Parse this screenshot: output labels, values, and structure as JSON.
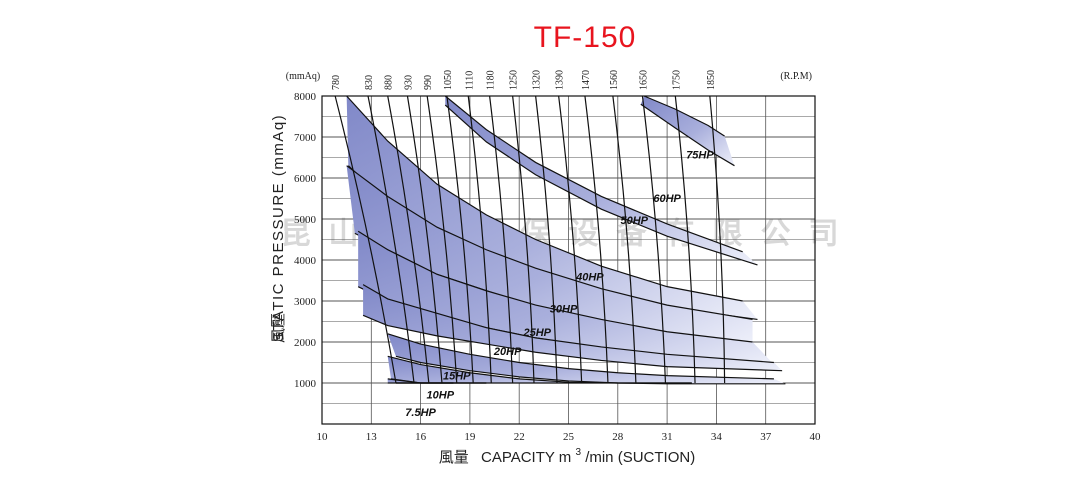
{
  "chart_data": {
    "type": "line",
    "title": "TF-150",
    "xlabel": "風量 CAPACITY m3/min (SUCTION)",
    "xlabel_parts": {
      "cjk": "風量",
      "main": "CAPACITY  m",
      "sup": "3",
      "tail": "/min (SUCTION)"
    },
    "ylabel": "STATIC PRESSURE (mmAq)",
    "ylabel_cjk": "風壓",
    "xlim": [
      10,
      40
    ],
    "ylim": [
      0,
      8000
    ],
    "x_ticks": [
      "10",
      "13",
      "16",
      "19",
      "22",
      "25",
      "28",
      "31",
      "34",
      "37",
      "40"
    ],
    "y_ticks": [
      "1000",
      "2000",
      "3000",
      "4000",
      "5000",
      "6000",
      "7000",
      "8000"
    ],
    "top_axis": {
      "left_unit": "(mmAq)",
      "right_unit": "(R.P.M)",
      "rpm_labels": [
        "780",
        "830",
        "880",
        "930",
        "990",
        "1050",
        "1110",
        "1180",
        "1250",
        "1320",
        "1390",
        "1470",
        "1560",
        "1650",
        "1750",
        "1850"
      ]
    },
    "watermark": "昆山大圆环保设备有限公司",
    "grid": true,
    "colors": {
      "band": "#8088c8",
      "band_light": "#eef0fa",
      "title": "#e8141e",
      "line": "#111111"
    },
    "rpm_curves": [
      {
        "rpm": "780",
        "points": [
          [
            10.8,
            8000
          ],
          [
            14.5,
            1000
          ]
        ]
      },
      {
        "rpm": "830",
        "points": [
          [
            12.8,
            8000
          ],
          [
            15.6,
            1000
          ]
        ]
      },
      {
        "rpm": "880",
        "points": [
          [
            14.0,
            8000
          ],
          [
            16.5,
            1000
          ]
        ]
      },
      {
        "rpm": "930",
        "points": [
          [
            15.2,
            8000
          ],
          [
            17.3,
            1000
          ]
        ]
      },
      {
        "rpm": "990",
        "points": [
          [
            16.4,
            8000
          ],
          [
            18.2,
            1000
          ]
        ]
      },
      {
        "rpm": "1050",
        "points": [
          [
            17.6,
            8000
          ],
          [
            19.2,
            1000
          ]
        ]
      },
      {
        "rpm": "1110",
        "points": [
          [
            18.9,
            8000
          ],
          [
            20.3,
            1000
          ]
        ]
      },
      {
        "rpm": "1180",
        "points": [
          [
            20.2,
            8000
          ],
          [
            21.6,
            1000
          ]
        ]
      },
      {
        "rpm": "1250",
        "points": [
          [
            21.6,
            8000
          ],
          [
            22.9,
            1000
          ]
        ]
      },
      {
        "rpm": "1320",
        "points": [
          [
            23.0,
            8000
          ],
          [
            24.3,
            1000
          ]
        ]
      },
      {
        "rpm": "1390",
        "points": [
          [
            24.4,
            8000
          ],
          [
            25.8,
            1000
          ]
        ]
      },
      {
        "rpm": "1470",
        "points": [
          [
            26.0,
            8000
          ],
          [
            27.4,
            1000
          ]
        ]
      },
      {
        "rpm": "1560",
        "points": [
          [
            27.7,
            8000
          ],
          [
            29.1,
            1000
          ]
        ]
      },
      {
        "rpm": "1650",
        "points": [
          [
            29.5,
            8000
          ],
          [
            30.9,
            1000
          ]
        ]
      },
      {
        "rpm": "1750",
        "points": [
          [
            31.5,
            8000
          ],
          [
            32.7,
            1000
          ]
        ]
      },
      {
        "rpm": "1850",
        "points": [
          [
            33.6,
            8000
          ],
          [
            34.5,
            1000
          ]
        ]
      }
    ],
    "power_bands": [
      {
        "name": "75HP",
        "label_at": [
          33.0,
          6480
        ],
        "upper": [
          [
            29.6,
            8000
          ],
          [
            31.5,
            7680
          ],
          [
            33.5,
            7280
          ],
          [
            34.5,
            7020
          ]
        ],
        "lower": [
          [
            29.4,
            7800
          ],
          [
            31.5,
            7220
          ],
          [
            33.5,
            6680
          ],
          [
            35.1,
            6300
          ]
        ]
      },
      {
        "name": "60HP",
        "label_at": [
          31.0,
          5420
        ],
        "upper": [
          [
            17.5,
            8000
          ],
          [
            20,
            7180
          ],
          [
            23,
            6380
          ],
          [
            27,
            5550
          ],
          [
            31,
            4880
          ],
          [
            35.6,
            4200
          ]
        ],
        "lower": [
          [
            17.5,
            7780
          ],
          [
            20,
            6880
          ],
          [
            23,
            6080
          ],
          [
            27,
            5240
          ],
          [
            31,
            4580
          ],
          [
            36.5,
            3880
          ]
        ]
      },
      {
        "name": "50HP",
        "label_at": [
          29.0,
          4880
        ],
        "upper": [
          [
            11.5,
            8000
          ],
          [
            14,
            6900
          ],
          [
            17,
            5850
          ],
          [
            20,
            5100
          ],
          [
            23,
            4500
          ],
          [
            27,
            3850
          ],
          [
            31,
            3350
          ],
          [
            35.6,
            3000
          ]
        ],
        "lower": [
          [
            11.6,
            6300
          ],
          [
            14,
            5400
          ],
          [
            17,
            4750
          ],
          [
            20,
            4200
          ],
          [
            23,
            3750
          ],
          [
            27,
            3250
          ],
          [
            31,
            2850
          ],
          [
            36.5,
            2550
          ]
        ]
      },
      {
        "name": "40HP",
        "label_at": [
          26.3,
          3500
        ],
        "upper": [
          [
            11.5,
            6300
          ],
          [
            14,
            5550
          ],
          [
            17,
            4800
          ],
          [
            20,
            4250
          ],
          [
            23,
            3800
          ],
          [
            27,
            3300
          ],
          [
            31,
            2900
          ],
          [
            36.2,
            2550
          ]
        ],
        "lower": [
          [
            12.0,
            4650
          ],
          [
            14,
            4250
          ],
          [
            17,
            3650
          ],
          [
            20,
            3250
          ],
          [
            23,
            2850
          ],
          [
            27,
            2500
          ],
          [
            31,
            2200
          ],
          [
            36.2,
            1950
          ]
        ]
      },
      {
        "name": "30HP",
        "label_at": [
          24.7,
          2720
        ],
        "upper": [
          [
            12.2,
            4700
          ],
          [
            14,
            4250
          ],
          [
            17,
            3650
          ],
          [
            20,
            3250
          ],
          [
            23,
            2900
          ],
          [
            27,
            2550
          ],
          [
            31,
            2250
          ],
          [
            36.2,
            2000
          ]
        ],
        "lower": [
          [
            12.2,
            3350
          ],
          [
            14,
            3000
          ],
          [
            17,
            2650
          ],
          [
            20,
            2350
          ],
          [
            23,
            2100
          ],
          [
            27,
            1850
          ],
          [
            31,
            1650
          ],
          [
            37.5,
            1450
          ]
        ]
      },
      {
        "name": "25HP",
        "label_at": [
          23.1,
          2150
        ],
        "upper": [
          [
            12.5,
            3400
          ],
          [
            14,
            3050
          ],
          [
            17,
            2700
          ],
          [
            20,
            2350
          ],
          [
            23,
            2100
          ],
          [
            27,
            1880
          ],
          [
            31,
            1700
          ],
          [
            37.5,
            1500
          ]
        ],
        "lower": [
          [
            12.5,
            2650
          ],
          [
            14,
            2400
          ],
          [
            17,
            2150
          ],
          [
            20,
            1950
          ],
          [
            23,
            1750
          ],
          [
            27,
            1550
          ],
          [
            31,
            1400
          ],
          [
            38.0,
            1300
          ]
        ]
      },
      {
        "name": "20HP",
        "label_at": [
          21.3,
          1680
        ],
        "upper": [
          [
            14.0,
            2200
          ],
          [
            16,
            1950
          ],
          [
            19,
            1700
          ],
          [
            22,
            1500
          ],
          [
            25,
            1350
          ],
          [
            28,
            1250
          ],
          [
            31,
            1180
          ],
          [
            37.5,
            1100
          ]
        ],
        "lower": [
          [
            14.5,
            1650
          ],
          [
            16,
            1500
          ],
          [
            19,
            1300
          ],
          [
            22,
            1150
          ],
          [
            25,
            1050
          ],
          [
            28,
            1000
          ],
          [
            31,
            980
          ],
          [
            38.2,
            980
          ]
        ]
      },
      {
        "name": "15HP",
        "label_at": [
          18.2,
          1080
        ],
        "upper": [
          [
            14.0,
            1650
          ],
          [
            16,
            1450
          ],
          [
            19,
            1250
          ],
          [
            22,
            1100
          ],
          [
            25,
            1020
          ],
          [
            28,
            1000
          ],
          [
            31,
            1000
          ],
          [
            32.5,
            1000
          ]
        ],
        "lower": [
          [
            14.2,
            1100
          ],
          [
            16,
            1000
          ],
          [
            19,
            1000
          ],
          [
            22,
            1000
          ],
          [
            25,
            1000
          ],
          [
            28,
            1000
          ],
          [
            31,
            1000
          ],
          [
            32.5,
            1000
          ]
        ]
      },
      {
        "name": "10HP",
        "label_at": [
          17.2,
          620
        ],
        "upper": [
          [
            14.0,
            1100
          ],
          [
            16,
            1000
          ],
          [
            18,
            1000
          ],
          [
            20,
            1000
          ]
        ],
        "lower": [
          [
            14.0,
            1000
          ],
          [
            16,
            1000
          ],
          [
            18,
            1000
          ],
          [
            20,
            1000
          ]
        ]
      },
      {
        "name": "7.5HP",
        "label_at": [
          16.0,
          200
        ],
        "upper": [
          [
            14.5,
            1000
          ],
          [
            16,
            1000
          ],
          [
            18,
            1000
          ]
        ],
        "lower": [
          [
            14.5,
            1000
          ],
          [
            16,
            1000
          ],
          [
            18,
            1000
          ]
        ]
      }
    ]
  }
}
